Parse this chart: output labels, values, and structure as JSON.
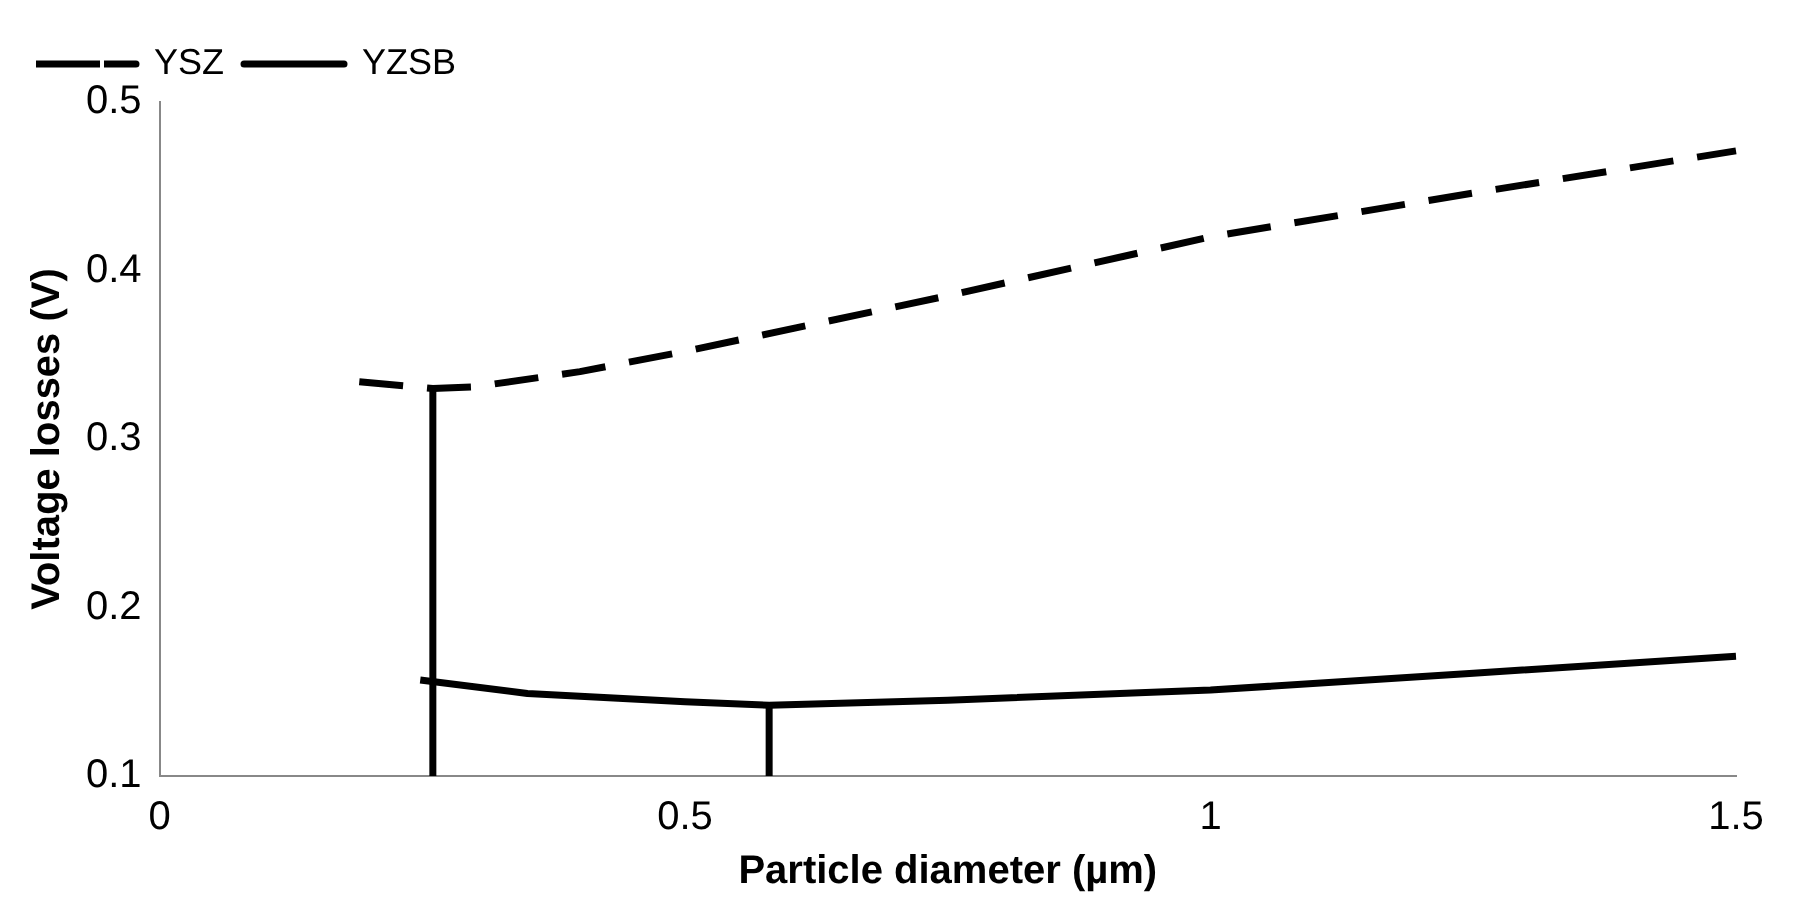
{
  "chart_data": {
    "type": "line",
    "xlabel": "Particle diameter (µm)",
    "ylabel": "Voltage losses (V)",
    "xlim": [
      0,
      1.5
    ],
    "xticks": [
      0,
      0.5,
      1,
      1.5
    ],
    "ylim": [
      0.1,
      0.5
    ],
    "yticks": [
      0.1,
      0.2,
      0.3,
      0.4,
      0.5
    ],
    "grid": false,
    "legend": "top left",
    "marker": "none",
    "series": [
      {
        "name": "YSZ",
        "color": "#000000",
        "line_style": "dashed",
        "x": [
          0.19,
          0.26,
          0.3,
          0.4,
          0.5,
          0.75,
          1,
          1.25,
          1.5
        ],
        "values": [
          0.334,
          0.33,
          0.331,
          0.34,
          0.352,
          0.385,
          0.42,
          0.446,
          0.471
        ]
      },
      {
        "name": "YZSB",
        "color": "#000000",
        "line_style": "solid",
        "x": [
          0.248,
          0.35,
          0.5,
          0.58,
          0.75,
          1,
          1.25,
          1.5
        ],
        "values": [
          0.157,
          0.149,
          0.144,
          0.142,
          0.145,
          0.151,
          0.161,
          0.171
        ]
      },
      {
        "color": "#000000",
        "line_style": "solid",
        "x": [
          0.26,
          0.26
        ],
        "values": [
          0.1,
          0.33
        ]
      },
      {
        "color": "#000000",
        "line_style": "solid",
        "x": [
          0.58,
          0.58
        ],
        "values": [
          0.1,
          0.142
        ]
      }
    ]
  }
}
